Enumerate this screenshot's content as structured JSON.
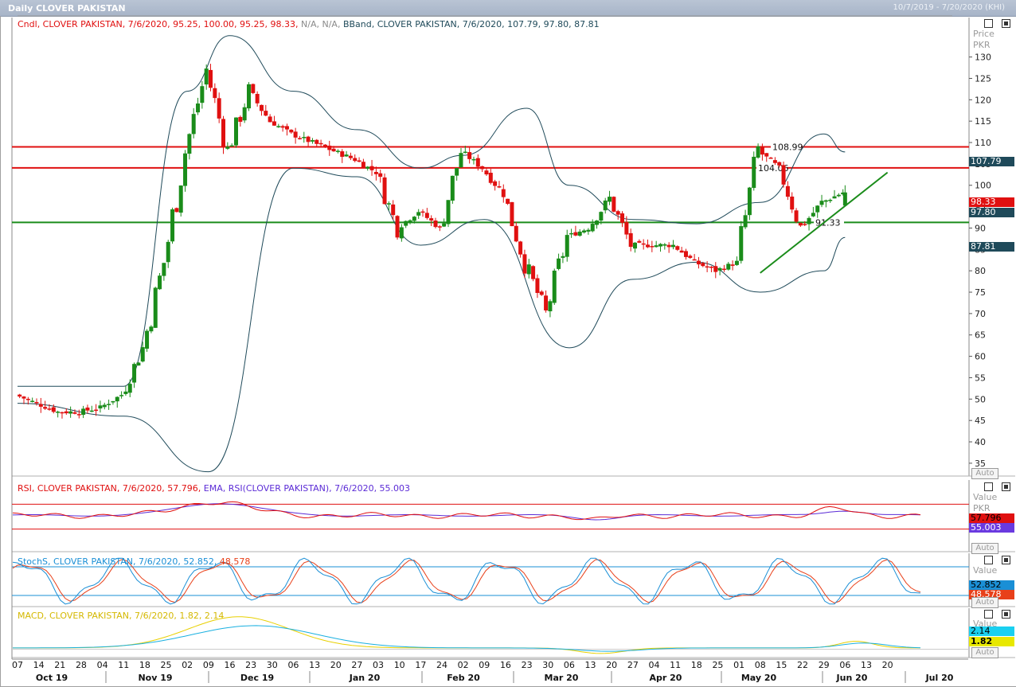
{
  "window": {
    "title": "Daily CLOVER PAKISTAN",
    "date_range": "10/7/2019 - 7/20/2020 (KHI)"
  },
  "price_panel": {
    "legend_cndl": "Cndl, CLOVER PAKISTAN, 7/6/2020, 95.25, 100.00, 95.25, 98.33,",
    "legend_na": "N/A, N/A,",
    "legend_bband": "BBand, CLOVER PAKISTAN, 7/6/2020, 107.79, 97.80, 87.81",
    "axis_title_1": "Price",
    "axis_title_2": "PKR",
    "tags": {
      "upper": "107.79",
      "close": "98.33",
      "mid": "97.80",
      "lower": "87.81"
    },
    "level_labels": [
      "108.99",
      "104.06",
      "91.33"
    ],
    "auto": "Auto"
  },
  "rsi_panel": {
    "legend_rsi": "RSI, CLOVER PAKISTAN, 7/6/2020, 57.796,",
    "legend_ema": "EMA, RSI(CLOVER PAKISTAN), 7/6/2020, 55.003",
    "axis_value": "Value",
    "axis_unit": "PKR",
    "tags": {
      "rsi": "57.796",
      "ema": "55.003"
    },
    "auto": "Auto"
  },
  "stoch_panel": {
    "legend_k": "StochS, CLOVER PAKISTAN, 7/6/2020, 52.852,",
    "legend_d": "48.578",
    "axis_value": "Value",
    "tags": {
      "k": "52.852",
      "d": "48.578"
    },
    "auto": "Auto"
  },
  "macd_panel": {
    "legend": "MACD, CLOVER PAKISTAN, 7/6/2020, 1.82, 2.14",
    "axis_value": "Value",
    "tags": {
      "macd": "2.14",
      "signal": "1.82"
    },
    "auto": "Auto"
  },
  "colors": {
    "up": "#1a8c1a",
    "down": "#e01010",
    "band": "#1f4a5a",
    "rsi": "#e01010",
    "ema": "#5b2bd6",
    "stoch_k": "#1a8fd6",
    "stoch_d": "#e8401a",
    "macd": "#1ab0e0",
    "signal": "#e8d000"
  },
  "chart_data": {
    "type": "candlestick",
    "symbol": "CLOVER PAKISTAN",
    "ylim": [
      32,
      137
    ],
    "y_ticks": [
      35,
      40,
      45,
      50,
      55,
      60,
      65,
      70,
      75,
      80,
      85,
      90,
      95,
      100,
      105,
      110,
      115,
      120,
      125,
      130
    ],
    "horizontal_levels": [
      108.99,
      104.06,
      91.33
    ],
    "x_tick_labels": [
      "07",
      "14",
      "21",
      "28",
      "04",
      "11",
      "18",
      "25",
      "02",
      "09",
      "16",
      "23",
      "30",
      "06",
      "13",
      "20",
      "27",
      "03",
      "10",
      "17",
      "24",
      "02",
      "09",
      "16",
      "23",
      "30",
      "06",
      "13",
      "20",
      "27",
      "04",
      "11",
      "18",
      "25",
      "01",
      "08",
      "15",
      "22",
      "29",
      "06",
      "13",
      "20"
    ],
    "month_labels": [
      "Oct 19",
      "Nov 19",
      "Dec 19",
      "Jan 20",
      "Feb 20",
      "Mar 20",
      "Apr 20",
      "May 20",
      "Jun 20",
      "Jul 20"
    ],
    "last_candle": {
      "date": "7/6/2020",
      "open": 95.25,
      "high": 100.0,
      "low": 95.25,
      "close": 98.33
    },
    "close_path": [
      {
        "d": "2019-10-07",
        "c": 51
      },
      {
        "d": "2019-10-14",
        "c": 49
      },
      {
        "d": "2019-10-21",
        "c": 47
      },
      {
        "d": "2019-10-28",
        "c": 47
      },
      {
        "d": "2019-11-04",
        "c": 48
      },
      {
        "d": "2019-11-11",
        "c": 51
      },
      {
        "d": "2019-11-18",
        "c": 62
      },
      {
        "d": "2019-11-25",
        "c": 82
      },
      {
        "d": "2019-12-02",
        "c": 108
      },
      {
        "d": "2019-12-09",
        "c": 127
      },
      {
        "d": "2019-12-16",
        "c": 108
      },
      {
        "d": "2019-12-23",
        "c": 122
      },
      {
        "d": "2019-12-30",
        "c": 115
      },
      {
        "d": "2020-01-06",
        "c": 112
      },
      {
        "d": "2020-01-13",
        "c": 110
      },
      {
        "d": "2020-01-20",
        "c": 108
      },
      {
        "d": "2020-01-27",
        "c": 106
      },
      {
        "d": "2020-02-03",
        "c": 103
      },
      {
        "d": "2020-02-10",
        "c": 90
      },
      {
        "d": "2020-02-17",
        "c": 94
      },
      {
        "d": "2020-02-24",
        "c": 90
      },
      {
        "d": "2020-03-02",
        "c": 108
      },
      {
        "d": "2020-03-09",
        "c": 104
      },
      {
        "d": "2020-03-16",
        "c": 98
      },
      {
        "d": "2020-03-23",
        "c": 82
      },
      {
        "d": "2020-03-30",
        "c": 70
      },
      {
        "d": "2020-04-06",
        "c": 88
      },
      {
        "d": "2020-04-13",
        "c": 90
      },
      {
        "d": "2020-04-20",
        "c": 97
      },
      {
        "d": "2020-04-27",
        "c": 86
      },
      {
        "d": "2020-05-04",
        "c": 86
      },
      {
        "d": "2020-05-11",
        "c": 86
      },
      {
        "d": "2020-05-18",
        "c": 82
      },
      {
        "d": "2020-05-25",
        "c": 80
      },
      {
        "d": "2020-06-01",
        "c": 82
      },
      {
        "d": "2020-06-08",
        "c": 108
      },
      {
        "d": "2020-06-15",
        "c": 104
      },
      {
        "d": "2020-06-22",
        "c": 90
      },
      {
        "d": "2020-06-29",
        "c": 96
      },
      {
        "d": "2020-07-06",
        "c": 98.33
      }
    ],
    "bband_upper": [
      {
        "d": "2019-10-07",
        "v": 53
      },
      {
        "d": "2019-11-11",
        "v": 53
      },
      {
        "d": "2019-12-02",
        "v": 122
      },
      {
        "d": "2019-12-16",
        "v": 135
      },
      {
        "d": "2020-01-06",
        "v": 122
      },
      {
        "d": "2020-01-27",
        "v": 113
      },
      {
        "d": "2020-02-17",
        "v": 104
      },
      {
        "d": "2020-03-02",
        "v": 107
      },
      {
        "d": "2020-03-23",
        "v": 118
      },
      {
        "d": "2020-04-06",
        "v": 100
      },
      {
        "d": "2020-04-27",
        "v": 92
      },
      {
        "d": "2020-05-18",
        "v": 91
      },
      {
        "d": "2020-06-08",
        "v": 96
      },
      {
        "d": "2020-06-29",
        "v": 112
      },
      {
        "d": "2020-07-06",
        "v": 107.79
      }
    ],
    "bband_lower": [
      {
        "d": "2019-10-07",
        "v": 49
      },
      {
        "d": "2019-11-11",
        "v": 46
      },
      {
        "d": "2019-12-09",
        "v": 33
      },
      {
        "d": "2020-01-06",
        "v": 104
      },
      {
        "d": "2020-01-27",
        "v": 102
      },
      {
        "d": "2020-02-17",
        "v": 86
      },
      {
        "d": "2020-03-09",
        "v": 92
      },
      {
        "d": "2020-04-06",
        "v": 62
      },
      {
        "d": "2020-04-27",
        "v": 78
      },
      {
        "d": "2020-05-18",
        "v": 82
      },
      {
        "d": "2020-06-08",
        "v": 75
      },
      {
        "d": "2020-06-29",
        "v": 80
      },
      {
        "d": "2020-07-06",
        "v": 87.81
      }
    ],
    "trendline": [
      {
        "d": "2020-06-08",
        "v": 79.5
      },
      {
        "d": "2020-07-20",
        "v": 103
      }
    ],
    "rsi": {
      "last": 57.796,
      "ema_last": 55.003,
      "bands": [
        70,
        30
      ]
    },
    "stoch": {
      "k_last": 52.852,
      "d_last": 48.578,
      "bands": [
        80,
        20
      ]
    },
    "macd": {
      "macd_last": 2.14,
      "signal_last": 1.82
    }
  }
}
